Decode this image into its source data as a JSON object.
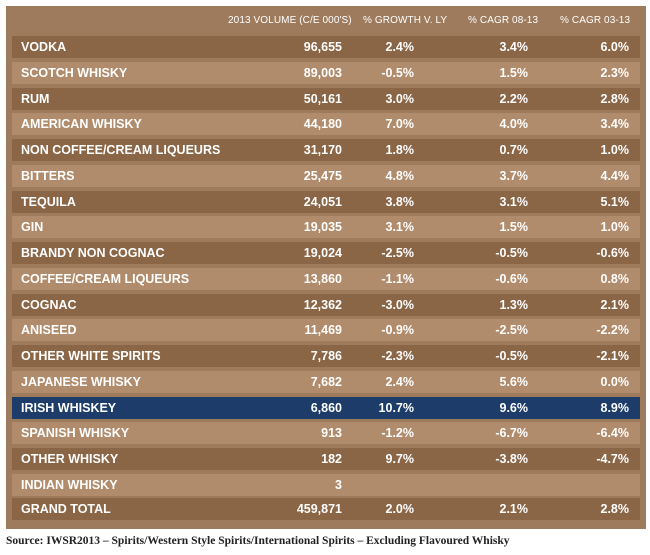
{
  "headers": {
    "volume": "2013 VOLUME  (C/E 000'S)",
    "growth": "% GROWTH V. LY",
    "cagr_08_13": "% CAGR 08-13",
    "cagr_03_13": "% CAGR 03-13"
  },
  "rows": [
    {
      "name": "VODKA",
      "volume": "96,655",
      "growth": "2.4%",
      "cagr0813": "3.4%",
      "cagr0313": "6.0%"
    },
    {
      "name": "SCOTCH WHISKY",
      "volume": "89,003",
      "growth": "-0.5%",
      "cagr0813": "1.5%",
      "cagr0313": "2.3%"
    },
    {
      "name": "RUM",
      "volume": "50,161",
      "growth": "3.0%",
      "cagr0813": "2.2%",
      "cagr0313": "2.8%"
    },
    {
      "name": "AMERICAN WHISKY",
      "volume": "44,180",
      "growth": "7.0%",
      "cagr0813": "4.0%",
      "cagr0313": "3.4%"
    },
    {
      "name": "NON COFFEE/CREAM LIQUEURS",
      "volume": "31,170",
      "growth": "1.8%",
      "cagr0813": "0.7%",
      "cagr0313": "1.0%"
    },
    {
      "name": "BITTERS",
      "volume": "25,475",
      "growth": "4.8%",
      "cagr0813": "3.7%",
      "cagr0313": "4.4%"
    },
    {
      "name": "TEQUILA",
      "volume": "24,051",
      "growth": "3.8%",
      "cagr0813": "3.1%",
      "cagr0313": "5.1%"
    },
    {
      "name": "GIN",
      "volume": "19,035",
      "growth": "3.1%",
      "cagr0813": "1.5%",
      "cagr0313": "1.0%"
    },
    {
      "name": "BRANDY NON COGNAC",
      "volume": "19,024",
      "growth": "-2.5%",
      "cagr0813": "-0.5%",
      "cagr0313": "-0.6%"
    },
    {
      "name": "COFFEE/CREAM LIQUEURS",
      "volume": "13,860",
      "growth": "-1.1%",
      "cagr0813": "-0.6%",
      "cagr0313": "0.8%"
    },
    {
      "name": "COGNAC",
      "volume": "12,362",
      "growth": "-3.0%",
      "cagr0813": "1.3%",
      "cagr0313": "2.1%"
    },
    {
      "name": "ANISEED",
      "volume": "11,469",
      "growth": "-0.9%",
      "cagr0813": "-2.5%",
      "cagr0313": "-2.2%"
    },
    {
      "name": "OTHER WHITE SPIRITS",
      "volume": "7,786",
      "growth": "-2.3%",
      "cagr0813": "-0.5%",
      "cagr0313": "-2.1%"
    },
    {
      "name": "JAPANESE WHISKY",
      "volume": "7,682",
      "growth": "2.4%",
      "cagr0813": "5.6%",
      "cagr0313": "0.0%"
    },
    {
      "name": "IRISH WHISKEY",
      "volume": "6,860",
      "growth": "10.7%",
      "cagr0813": "9.6%",
      "cagr0313": "8.9%",
      "highlight": true
    },
    {
      "name": "SPANISH WHISKY",
      "volume": "913",
      "growth": "-1.2%",
      "cagr0813": "-6.7%",
      "cagr0313": "-6.4%"
    },
    {
      "name": "OTHER WHISKY",
      "volume": "182",
      "growth": "9.7%",
      "cagr0813": "-3.8%",
      "cagr0313": "-4.7%"
    },
    {
      "name": "INDIAN WHISKY",
      "volume": "3",
      "growth": "",
      "cagr0813": "",
      "cagr0313": ""
    }
  ],
  "total": {
    "name": "GRAND TOTAL",
    "volume": "459,871",
    "growth": "2.0%",
    "cagr0813": "2.1%",
    "cagr0313": "2.8%"
  },
  "source": "Source: IWSR2013 – Spirits/Western Style Spirits/International Spirits – Excluding Flavoured Whisky",
  "colors": {
    "panel": "#9e7b5c",
    "row_dark": "#8a6647",
    "row_light": "#b08c6c",
    "highlight": "#1d3c69",
    "text": "#ffffff"
  }
}
